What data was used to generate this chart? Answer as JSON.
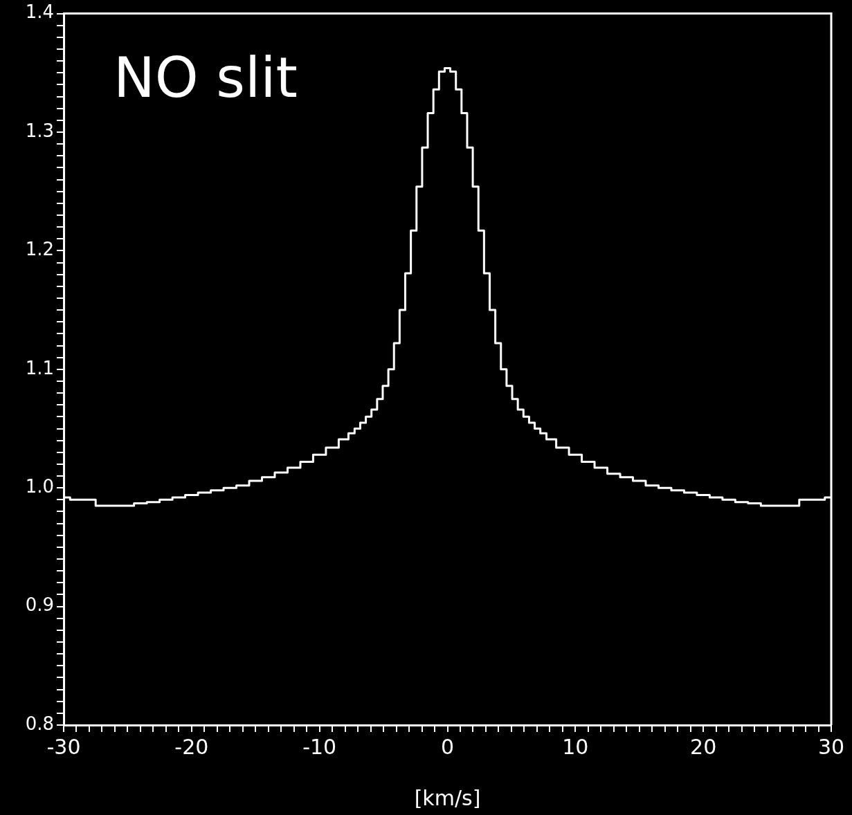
{
  "chart_data": {
    "type": "step",
    "xlabel": "[km/s]",
    "annotations": [
      "NO slit"
    ],
    "x": [
      -30,
      -29,
      -28,
      -27,
      -26,
      -25,
      -24,
      -23,
      -22,
      -21,
      -20,
      -19,
      -18,
      -17,
      -16,
      -15,
      -14,
      -13,
      -12,
      -11,
      -10,
      -9,
      -8,
      -7.48,
      -7.04,
      -6.6,
      -6.16,
      -5.72,
      -5.28,
      -4.84,
      -4.4,
      -3.96,
      -3.52,
      -3.08,
      -2.64,
      -2.2,
      -1.76,
      -1.32,
      -0.88,
      -0.44,
      0,
      0.44,
      0.88,
      1.32,
      1.76,
      2.2,
      2.64,
      3.08,
      3.52,
      3.96,
      4.4,
      4.84,
      5.28,
      5.72,
      6.16,
      6.6,
      7.04,
      7.48,
      8,
      9,
      10,
      11,
      12,
      13,
      14,
      15,
      16,
      17,
      18,
      19,
      20,
      21,
      22,
      23,
      24,
      25,
      26,
      27,
      28,
      29,
      30
    ],
    "series": [
      {
        "color": "#ffffff",
        "values": [
          0.992,
          0.99,
          0.99,
          0.985,
          0.985,
          0.985,
          0.987,
          0.988,
          0.99,
          0.992,
          0.994,
          0.996,
          0.998,
          1.0,
          1.002,
          1.006,
          1.009,
          1.013,
          1.017,
          1.022,
          1.028,
          1.034,
          1.041,
          1.046,
          1.05,
          1.055,
          1.06,
          1.066,
          1.075,
          1.086,
          1.1,
          1.122,
          1.15,
          1.181,
          1.217,
          1.254,
          1.287,
          1.316,
          1.336,
          1.351,
          1.354,
          1.351,
          1.336,
          1.316,
          1.287,
          1.254,
          1.217,
          1.181,
          1.15,
          1.122,
          1.1,
          1.086,
          1.075,
          1.066,
          1.06,
          1.055,
          1.05,
          1.046,
          1.041,
          1.034,
          1.028,
          1.022,
          1.017,
          1.012,
          1.009,
          1.006,
          1.002,
          1.0,
          0.998,
          0.996,
          0.994,
          0.992,
          0.99,
          0.988,
          0.987,
          0.985,
          0.985,
          0.985,
          0.99,
          0.99,
          0.992
        ]
      }
    ],
    "xlim": [
      -30,
      30
    ],
    "ylim": [
      0.8,
      1.4
    ],
    "xticks": [
      -30,
      {
        "value": -29,
        "label": null
      },
      {
        "value": -28,
        "label": null
      },
      {
        "value": -27,
        "label": null
      },
      {
        "value": -26,
        "label": null
      },
      {
        "value": -25,
        "label": null
      },
      {
        "value": -24,
        "label": null
      },
      {
        "value": -23,
        "label": null
      },
      {
        "value": -22,
        "label": null
      },
      {
        "value": -21,
        "label": null
      },
      -20,
      {
        "value": -19,
        "label": null
      },
      {
        "value": -18,
        "label": null
      },
      {
        "value": -17,
        "label": null
      },
      {
        "value": -16,
        "label": null
      },
      {
        "value": -15,
        "label": null
      },
      {
        "value": -14,
        "label": null
      },
      {
        "value": -13,
        "label": null
      },
      {
        "value": -12,
        "label": null
      },
      {
        "value": -11,
        "label": null
      },
      -10,
      {
        "value": -9,
        "label": null
      },
      {
        "value": -8,
        "label": null
      },
      {
        "value": -7,
        "label": null
      },
      {
        "value": -6,
        "label": null
      },
      {
        "value": -5,
        "label": null
      },
      {
        "value": -4,
        "label": null
      },
      {
        "value": -3,
        "label": null
      },
      {
        "value": -2,
        "label": null
      },
      {
        "value": -1,
        "label": null
      },
      0,
      {
        "value": 1,
        "label": null
      },
      {
        "value": 2,
        "label": null
      },
      {
        "value": 3,
        "label": null
      },
      {
        "value": 4,
        "label": null
      },
      {
        "value": 5,
        "label": null
      },
      {
        "value": 6,
        "label": null
      },
      {
        "value": 7,
        "label": null
      },
      {
        "value": 8,
        "label": null
      },
      {
        "value": 9,
        "label": null
      },
      10,
      {
        "value": 11,
        "label": null
      },
      {
        "value": 12,
        "label": null
      },
      {
        "value": 13,
        "label": null
      },
      {
        "value": 14,
        "label": null
      },
      {
        "value": 15,
        "label": null
      },
      {
        "value": 16,
        "label": null
      },
      {
        "value": 17,
        "label": null
      },
      {
        "value": 18,
        "label": null
      },
      {
        "value": 19,
        "label": null
      },
      20,
      {
        "value": 21,
        "label": null
      },
      {
        "value": 22,
        "label": null
      },
      {
        "value": 23,
        "label": null
      },
      {
        "value": 24,
        "label": null
      },
      {
        "value": 25,
        "label": null
      },
      {
        "value": 26,
        "label": null
      },
      {
        "value": 27,
        "label": null
      },
      {
        "value": 28,
        "label": null
      },
      {
        "value": 29,
        "label": null
      },
      30
    ],
    "yticks": [
      {
        "value": 0.8,
        "label": "0.8"
      },
      {
        "value": 0.81,
        "label": null
      },
      {
        "value": 0.82,
        "label": null
      },
      {
        "value": 0.83,
        "label": null
      },
      {
        "value": 0.84,
        "label": null
      },
      {
        "value": 0.85,
        "label": null
      },
      {
        "value": 0.86,
        "label": null
      },
      {
        "value": 0.87,
        "label": null
      },
      {
        "value": 0.88,
        "label": null
      },
      {
        "value": 0.89,
        "label": null
      },
      {
        "value": 0.9,
        "label": "0.9"
      },
      {
        "value": 0.91,
        "label": null
      },
      {
        "value": 0.92,
        "label": null
      },
      {
        "value": 0.93,
        "label": null
      },
      {
        "value": 0.94,
        "label": null
      },
      {
        "value": 0.95,
        "label": null
      },
      {
        "value": 0.96,
        "label": null
      },
      {
        "value": 0.97,
        "label": null
      },
      {
        "value": 0.98,
        "label": null
      },
      {
        "value": 0.99,
        "label": null
      },
      {
        "value": 1.0,
        "label": "1.0"
      },
      {
        "value": 1.01,
        "label": null
      },
      {
        "value": 1.02,
        "label": null
      },
      {
        "value": 1.03,
        "label": null
      },
      {
        "value": 1.04,
        "label": null
      },
      {
        "value": 1.05,
        "label": null
      },
      {
        "value": 1.06,
        "label": null
      },
      {
        "value": 1.07,
        "label": null
      },
      {
        "value": 1.08,
        "label": null
      },
      {
        "value": 1.09,
        "label": null
      },
      {
        "value": 1.1,
        "label": "1.1"
      },
      {
        "value": 1.11,
        "label": null
      },
      {
        "value": 1.12,
        "label": null
      },
      {
        "value": 1.13,
        "label": null
      },
      {
        "value": 1.14,
        "label": null
      },
      {
        "value": 1.15,
        "label": null
      },
      {
        "value": 1.16,
        "label": null
      },
      {
        "value": 1.17,
        "label": null
      },
      {
        "value": 1.18,
        "label": null
      },
      {
        "value": 1.19,
        "label": null
      },
      {
        "value": 1.2,
        "label": "1.2"
      },
      {
        "value": 1.21,
        "label": null
      },
      {
        "value": 1.22,
        "label": null
      },
      {
        "value": 1.23,
        "label": null
      },
      {
        "value": 1.24,
        "label": null
      },
      {
        "value": 1.25,
        "label": null
      },
      {
        "value": 1.26,
        "label": null
      },
      {
        "value": 1.27,
        "label": null
      },
      {
        "value": 1.28,
        "label": null
      },
      {
        "value": 1.29,
        "label": null
      },
      {
        "value": 1.3,
        "label": "1.3"
      },
      {
        "value": 1.31,
        "label": null
      },
      {
        "value": 1.32,
        "label": null
      },
      {
        "value": 1.33,
        "label": null
      },
      {
        "value": 1.34,
        "label": null
      },
      {
        "value": 1.35,
        "label": null
      },
      {
        "value": 1.36,
        "label": null
      },
      {
        "value": 1.37,
        "label": null
      },
      {
        "value": 1.38,
        "label": null
      },
      {
        "value": 1.39,
        "label": null
      },
      {
        "value": 1.4,
        "label": "1.4"
      }
    ],
    "grid": false,
    "legend": false,
    "marker": "none",
    "line_style": "solid"
  }
}
